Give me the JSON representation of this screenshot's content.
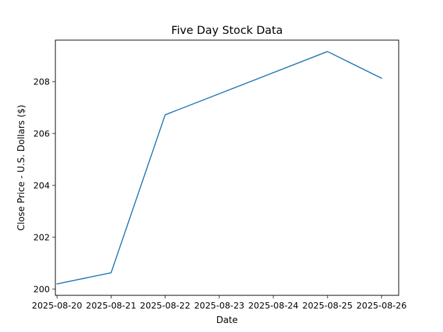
{
  "chart_data": {
    "type": "line",
    "title": "Five Day Stock Data",
    "xlabel": "Date",
    "ylabel": "Close Price - U.S. Dollars ($)",
    "x": [
      "2025-08-20",
      "2025-08-21",
      "2025-08-22",
      "2025-08-23",
      "2025-08-24",
      "2025-08-25",
      "2025-08-26"
    ],
    "series": [
      {
        "x": [
          "2025-08-20",
          "2025-08-21",
          "2025-08-22",
          "2025-08-25",
          "2025-08-26"
        ],
        "values": [
          200.2,
          200.63,
          206.72,
          209.16,
          208.13
        ],
        "color": "#1f77b4"
      }
    ],
    "xticks": [
      "2025-08-20",
      "2025-08-21",
      "2025-08-22",
      "2025-08-23",
      "2025-08-24",
      "2025-08-25",
      "2025-08-26"
    ],
    "yticks": [
      "200",
      "202",
      "204",
      "206",
      "208"
    ],
    "xlim": [
      "2025-08-19T23:17",
      "2025-08-26T07:36"
    ],
    "ylim": [
      199.76,
      209.6
    ],
    "grid": false,
    "legend": false
  }
}
